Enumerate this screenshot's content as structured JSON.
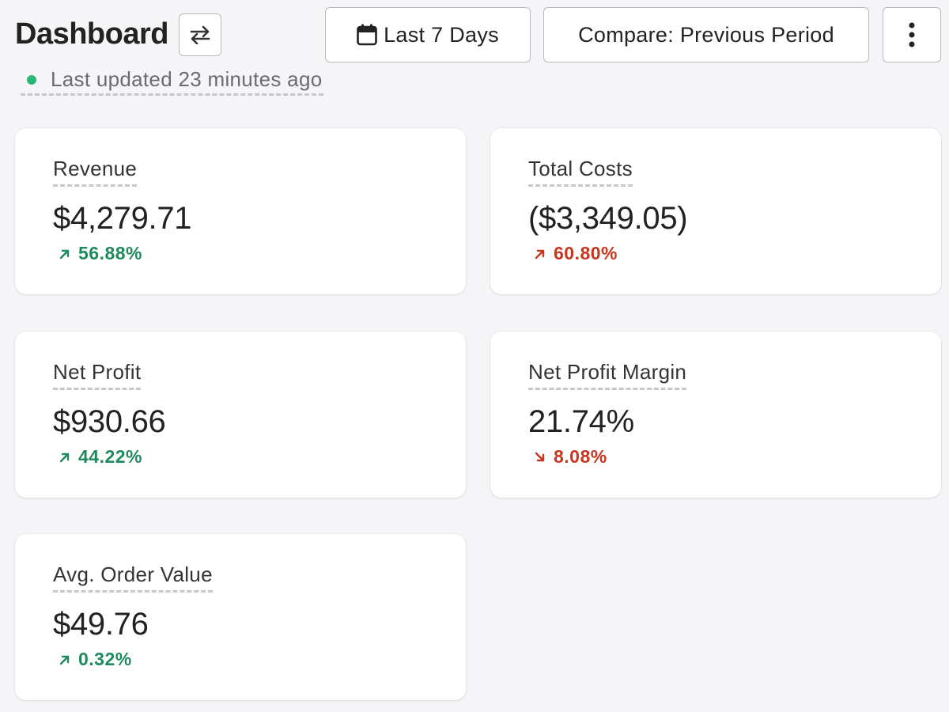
{
  "header": {
    "title": "Dashboard",
    "swap_icon": "swap-arrows-icon",
    "date_range_label": "Last 7 Days",
    "date_range_icon": "calendar-icon",
    "compare_label": "Compare: Previous Period",
    "more_icon": "vertical-ellipsis-icon",
    "last_updated": "Last updated 23 minutes ago",
    "status_color": "#2bb673"
  },
  "metrics": [
    {
      "label": "Revenue",
      "value": "$4,279.71",
      "change": "56.88%",
      "direction": "up",
      "tone": "positive"
    },
    {
      "label": "Total Costs",
      "value": "($3,349.05)",
      "change": "60.80%",
      "direction": "up",
      "tone": "negative"
    },
    {
      "label": "Net Profit",
      "value": "$930.66",
      "change": "44.22%",
      "direction": "up",
      "tone": "positive"
    },
    {
      "label": "Net Profit Margin",
      "value": "21.74%",
      "change": "8.08%",
      "direction": "down",
      "tone": "negative"
    },
    {
      "label": "Avg. Order Value",
      "value": "$49.76",
      "change": "0.32%",
      "direction": "up",
      "tone": "positive"
    }
  ],
  "colors": {
    "positive": "#1f8a5e",
    "negative": "#c8361f"
  }
}
